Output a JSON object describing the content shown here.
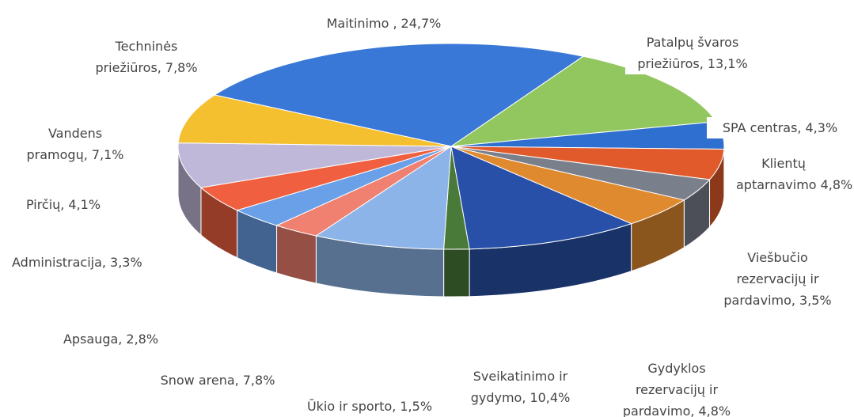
{
  "chart_data": {
    "type": "pie",
    "categories": [
      "Maitinimo ,",
      "Patalpų švaros priežiūros,",
      "SPA centras,",
      "Klientų aptarnavimo",
      "Viešbučio rezervacijų ir pardavimo,",
      "Gydyklos rezervacijų ir pardavimo,",
      "Sveikatinimo ir gydymo,",
      "Ūkio ir sporto,",
      "Snow arena,",
      "Apsauga,",
      "Administracija,",
      "Pirčių,",
      "Vandens pramogų,",
      "Techninės priežiūros,"
    ],
    "values": [
      24.7,
      13.1,
      4.3,
      4.8,
      3.5,
      4.8,
      10.4,
      1.5,
      7.8,
      2.8,
      3.3,
      4.1,
      7.1,
      7.8
    ],
    "value_labels": [
      "24,7%",
      "13,1%",
      "4,3%",
      "4,8%",
      "3,5%",
      "4,8%",
      "10,4%",
      "1,5%",
      "7,8%",
      "2,8%",
      "3,3%",
      "4,1%",
      "7,1%",
      "7,8%"
    ],
    "colors": [
      "#3a78d8",
      "#92c760",
      "#2f6fd0",
      "#e05a2b",
      "#7a7f8c",
      "#e08a30",
      "#2850a8",
      "#4a7a3a",
      "#8db4e8",
      "#f08070",
      "#6aa0e8",
      "#f06040",
      "#c0b8d8",
      "#f4c030"
    ]
  }
}
